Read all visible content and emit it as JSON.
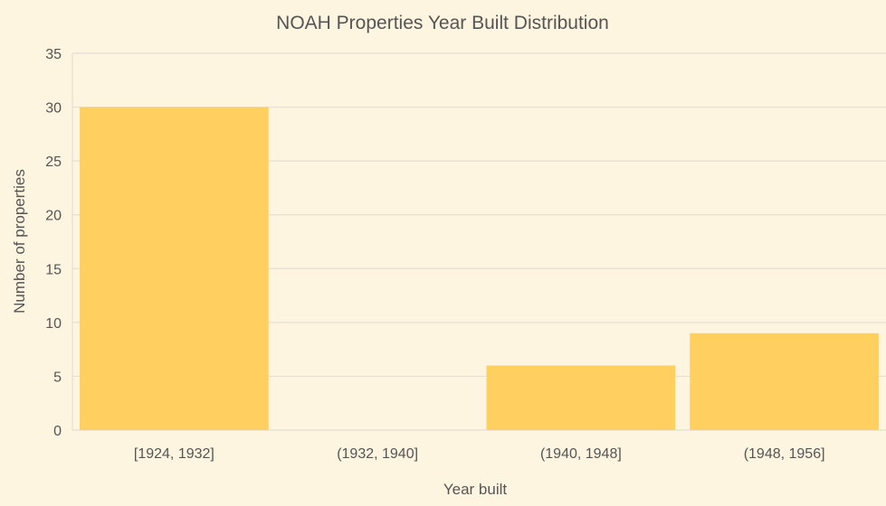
{
  "chart_data": {
    "type": "bar",
    "title": "NOAH Properties Year Built Distribution",
    "xlabel": "Year built",
    "ylabel": "Number of properties",
    "categories": [
      "[1924, 1932]",
      "(1932, 1940]",
      "(1940, 1948]",
      "(1948, 1956]"
    ],
    "values": [
      30,
      0,
      6,
      9
    ],
    "ylim": [
      0,
      35
    ],
    "yticks": [
      0,
      5,
      10,
      15,
      20,
      25,
      30,
      35
    ],
    "grid": true,
    "colors": {
      "background": "#fdf5df",
      "bar": "#ffd060",
      "grid": "#e6dfd2",
      "text": "#555555"
    }
  }
}
